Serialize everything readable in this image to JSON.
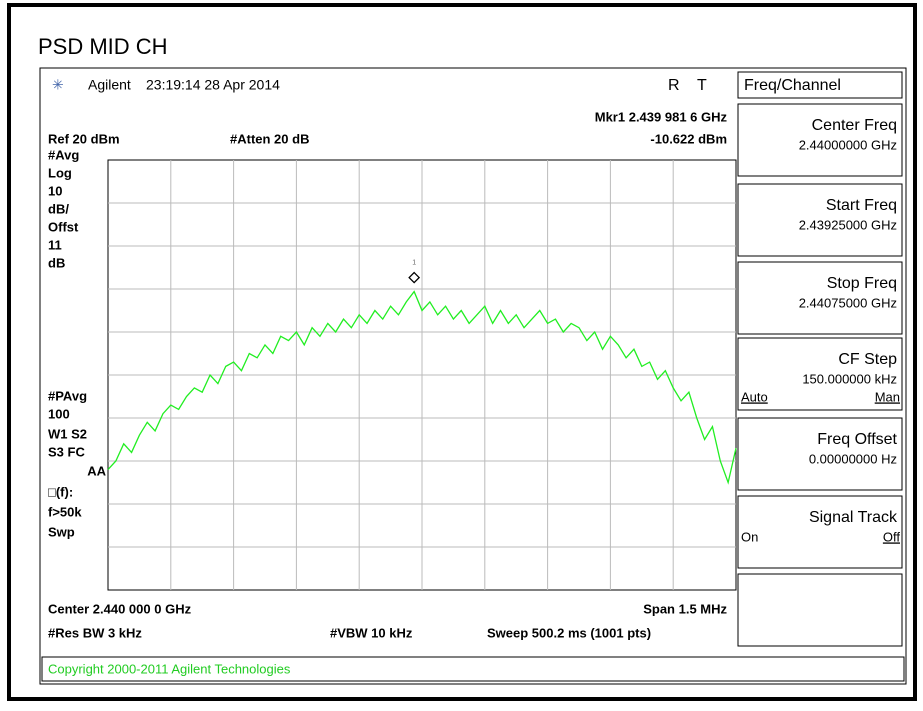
{
  "title": "PSD MID CH",
  "header": {
    "brand": "Agilent",
    "timestamp": "23:19:14  28 Apr 2014",
    "status_r": "R",
    "status_t": "T"
  },
  "marker": {
    "freq": "Mkr1  2.439 981 6 GHz",
    "amplitude": "-10.622 dBm",
    "id": "1"
  },
  "ref": "Ref 20 dBm",
  "atten": "#Atten 20 dB",
  "side_labels": [
    "#Avg",
    "Log",
    "10",
    "dB/",
    "Offst",
    "11",
    "dB",
    "#PAvg",
    "100",
    "W1  S2",
    "S3  FC",
    "AA",
    "□(f):",
    "f>50k",
    "Swp"
  ],
  "footer": {
    "center": "Center 2.440 000 0 GHz",
    "span": "Span 1.5 MHz",
    "rbw": "#Res BW 3 kHz",
    "vbw": "#VBW 10 kHz",
    "sweep": "Sweep 500.2 ms (1001 pts)"
  },
  "copyright": "Copyright 2000-2011 Agilent Technologies",
  "softkeys": {
    "menu": "Freq/Channel",
    "keys": [
      {
        "label": "Center Freq",
        "value": "2.44000000 GHz"
      },
      {
        "label": "Start Freq",
        "value": "2.43925000 GHz"
      },
      {
        "label": "Stop Freq",
        "value": "2.44075000 GHz"
      },
      {
        "label": "CF Step",
        "value": "150.000000 kHz",
        "left": "Auto",
        "right": "Man"
      },
      {
        "label": "Freq Offset",
        "value": "0.00000000  Hz"
      },
      {
        "label": "Signal Track",
        "left": "On",
        "right": "Off"
      }
    ]
  },
  "trace": {
    "ylim": [
      -80,
      20
    ],
    "values": [
      -52,
      -50,
      -46,
      -48,
      -44,
      -41,
      -43,
      -39,
      -37,
      -38,
      -35,
      -33,
      -34,
      -30,
      -32,
      -28,
      -27,
      -29,
      -25,
      -26,
      -23,
      -25,
      -21,
      -22,
      -20,
      -23,
      -19,
      -21,
      -18,
      -20,
      -17,
      -19,
      -16,
      -18,
      -15,
      -17,
      -14,
      -16,
      -13,
      -10.6,
      -15,
      -13,
      -16,
      -14,
      -17,
      -15,
      -18,
      -16,
      -14,
      -18,
      -15,
      -18,
      -16,
      -19,
      -17,
      -15,
      -18,
      -17,
      -20,
      -18,
      -19,
      -22,
      -20,
      -24,
      -21,
      -23,
      -26,
      -24,
      -28,
      -27,
      -31,
      -29,
      -33,
      -36,
      -34,
      -40,
      -45,
      -42,
      -50,
      -55,
      -47
    ]
  }
}
